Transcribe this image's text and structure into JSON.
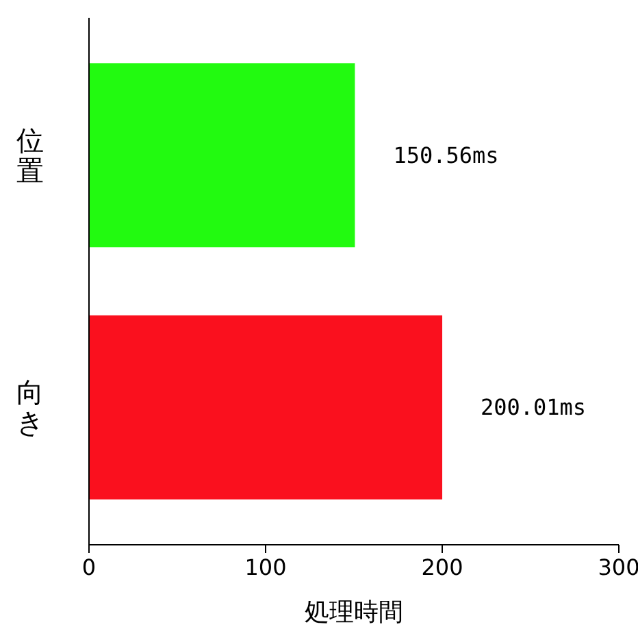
{
  "chart_data": {
    "type": "bar",
    "orientation": "horizontal",
    "xlabel": "処理時間",
    "categories": [
      "位置",
      "向き"
    ],
    "values": [
      150.56,
      200.01
    ],
    "colors": [
      "#22fa10",
      "#fa101e"
    ],
    "value_labels": [
      "150.56ms",
      "200.01ms"
    ],
    "xlim": [
      0,
      300
    ],
    "xticks": [
      0,
      100,
      200,
      300
    ]
  }
}
